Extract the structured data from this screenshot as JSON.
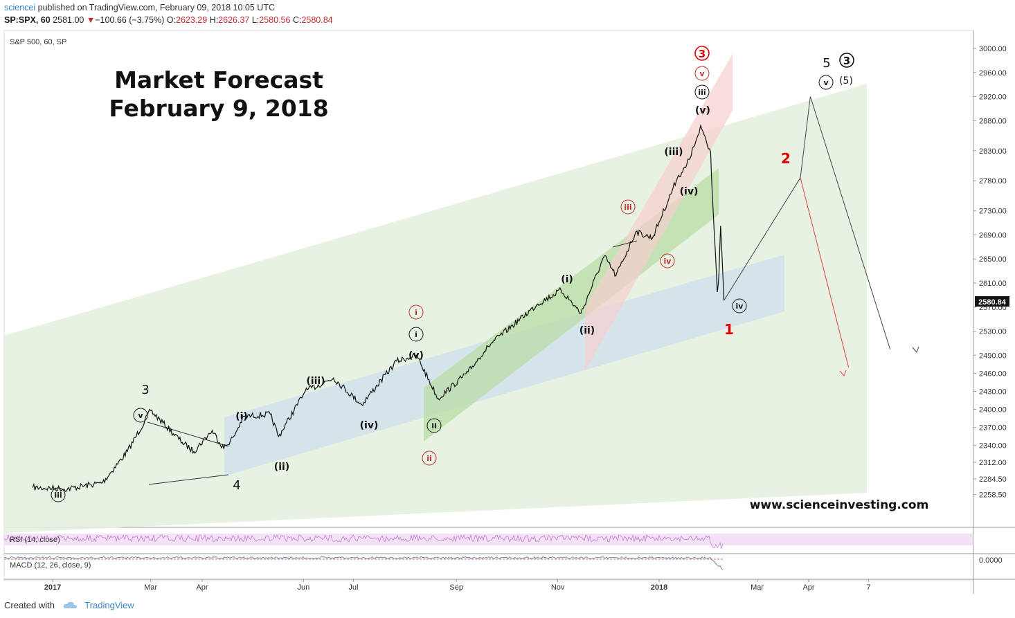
{
  "header": {
    "author": "sciencei",
    "published": "published on TradingView.com, February 09, 2018 10:05 UTC",
    "symbol": "SP:SPX, 60",
    "price": "2581.00",
    "change": "−100.66 (−3.75%)",
    "o_label": "O:",
    "o_val": "2623.29",
    "h_label": "H:",
    "h_val": "2626.37",
    "l_label": "L:",
    "l_val": "2580.56",
    "c_label": "C:",
    "c_val": "2580.84"
  },
  "footer": {
    "created_with": "Created with",
    "brand": "TradingView"
  },
  "colors": {
    "up_red": "#c42b2b",
    "green_channel": "#dfeeda",
    "blue_channel": "#cfe0ec",
    "pink_channel": "#f6d3d3",
    "rsi_band": "#f3e1f6",
    "price_line": "#111111"
  },
  "chart_data": {
    "type": "line",
    "title_line1": "Market Forecast",
    "title_line2": "February 9, 2018",
    "instrument_label": "S&P 500, 60, SP",
    "watermark": "www.scienceinvesting.com",
    "last_price_tag": "2580.84",
    "y_ticks": [
      "3000.00",
      "2960.00",
      "2920.00",
      "2880.00",
      "2830.00",
      "2780.00",
      "2730.00",
      "2690.00",
      "2650.00",
      "2610.00",
      "2570.00",
      "2530.00",
      "2490.00",
      "2460.00",
      "2430.00",
      "2400.00",
      "2370.00",
      "2340.00",
      "2312.00",
      "2284.50",
      "2258.50"
    ],
    "y_tick_values": [
      3000,
      2960,
      2920,
      2880,
      2830,
      2780,
      2730,
      2690,
      2650,
      2610,
      2570,
      2530,
      2490,
      2460,
      2430,
      2400,
      2370,
      2340,
      2312,
      2284.5,
      2258.5
    ],
    "x_ticks": [
      "2017",
      "Mar",
      "Apr",
      "Jun",
      "Jul",
      "Sep",
      "Nov",
      "2018",
      "Mar",
      "Apr",
      "7"
    ],
    "x_tick_dates": [
      "2017-01-01",
      "2017-03-01",
      "2017-04-01",
      "2017-06-01",
      "2017-07-01",
      "2017-09-01",
      "2017-11-01",
      "2018-01-01",
      "2018-03-01",
      "2018-04-01",
      "2018-05-07"
    ],
    "price_points": [
      [
        "2016-12-20",
        2270
      ],
      [
        "2017-01-10",
        2268
      ],
      [
        "2017-01-31",
        2278
      ],
      [
        "2017-02-15",
        2330
      ],
      [
        "2017-03-01",
        2398
      ],
      [
        "2017-03-20",
        2345
      ],
      [
        "2017-03-27",
        2330
      ],
      [
        "2017-04-07",
        2365
      ],
      [
        "2017-04-14",
        2335
      ],
      [
        "2017-04-20",
        2355
      ],
      [
        "2017-04-26",
        2388
      ],
      [
        "2017-05-12",
        2392
      ],
      [
        "2017-05-17",
        2355
      ],
      [
        "2017-06-02",
        2430
      ],
      [
        "2017-06-19",
        2452
      ],
      [
        "2017-07-06",
        2408
      ],
      [
        "2017-07-27",
        2480
      ],
      [
        "2017-08-08",
        2490
      ],
      [
        "2017-08-21",
        2418
      ],
      [
        "2017-09-08",
        2462
      ],
      [
        "2017-09-20",
        2505
      ],
      [
        "2017-10-20",
        2575
      ],
      [
        "2017-11-03",
        2598
      ],
      [
        "2017-11-15",
        2560
      ],
      [
        "2017-11-29",
        2655
      ],
      [
        "2017-12-06",
        2622
      ],
      [
        "2017-12-18",
        2695
      ],
      [
        "2017-12-28",
        2685
      ],
      [
        "2018-01-12",
        2785
      ],
      [
        "2018-01-17",
        2802
      ],
      [
        "2018-01-25",
        2858
      ],
      [
        "2018-01-26",
        2872
      ],
      [
        "2018-02-01",
        2828
      ],
      [
        "2018-02-02",
        2758
      ],
      [
        "2018-02-05",
        2595
      ],
      [
        "2018-02-06",
        2625
      ],
      [
        "2018-02-07",
        2705
      ],
      [
        "2018-02-09",
        2581
      ]
    ],
    "rsi": {
      "label": "RSI (14, close)"
    },
    "macd": {
      "label": "MACD (12, 26, close, 9)",
      "zero_tick": "0.0000"
    },
    "forecast_black": [
      [
        "2018-02-09",
        2581
      ],
      [
        "2018-03-27",
        2785
      ],
      [
        "2018-04-02",
        2920
      ],
      [
        "2018-05-20",
        2500
      ]
    ],
    "forecast_red": [
      [
        "2018-03-27",
        2785
      ],
      [
        "2018-04-25",
        2470
      ]
    ],
    "wave_labels": {
      "w3": "3",
      "w4": "4",
      "w5": "5",
      "circ_iii_black": "iii",
      "circ_iii_red": "iii",
      "circ_v_black": "v",
      "circ_i_red": "i",
      "circ_i_black": "i",
      "circ_ii_black": "ii",
      "circ_ii_red": "ii",
      "circ_iv_red": "iv",
      "circ_iii_top": "iii",
      "circ_v_red_top": "v",
      "circ3_red": "3",
      "circ3_black": "3",
      "circ_iv_black": "iv",
      "circ_v_forecast": "v",
      "p_i_1": "(i)",
      "p_ii_1": "(ii)",
      "p_iii_1": "(iii)",
      "p_iv_1": "(iv)",
      "p_v_1": "(v)",
      "p_i_2": "(i)",
      "p_ii_2": "(ii)",
      "p_iii_2": "(iii)",
      "p_iv_2": "(iv)",
      "p_v_2": "(v)",
      "p5": "(5)",
      "red1": "1",
      "red2": "2"
    }
  }
}
